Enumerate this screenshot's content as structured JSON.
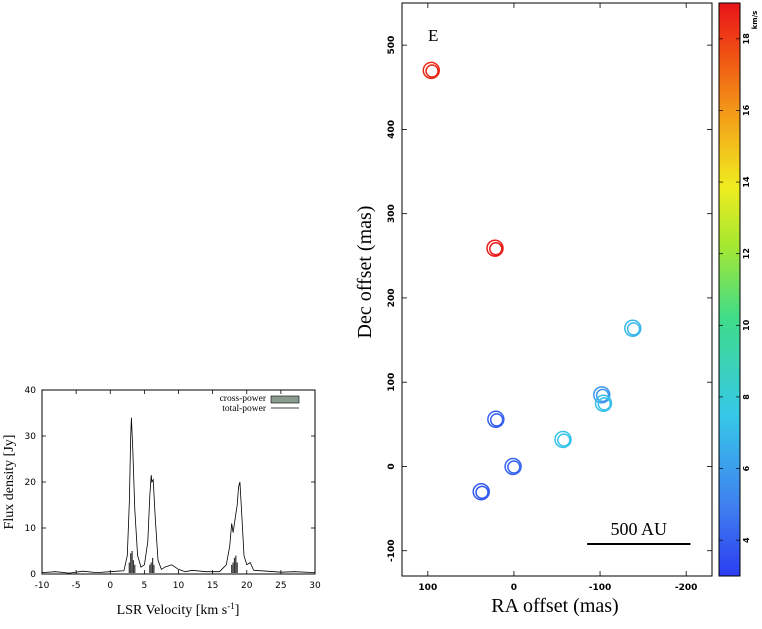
{
  "chart_data": [
    {
      "type": "line",
      "title": "",
      "xlabel": "LSR Velocity [km s",
      "xlabel_sup": "-1",
      "xlabel_end": "]",
      "ylabel": "Flux density [Jy]",
      "xlim": [
        -10,
        30
      ],
      "ylim": [
        0,
        40
      ],
      "xticks": [
        -10,
        -5,
        0,
        5,
        10,
        15,
        20,
        25,
        30
      ],
      "yticks": [
        0,
        10,
        20,
        30,
        40
      ],
      "legend": {
        "position": "top-right",
        "entries": [
          {
            "label": "cross-power",
            "kind": "bar",
            "color": "#8a9a90"
          },
          {
            "label": "total-power",
            "kind": "line",
            "color": "#000000"
          }
        ]
      },
      "series": [
        {
          "name": "total-power",
          "x": [
            -10,
            -8,
            -6,
            -4,
            -2,
            0,
            1,
            2,
            2.5,
            2.8,
            3.0,
            3.1,
            3.3,
            3.6,
            4.0,
            4.5,
            5.0,
            5.5,
            5.8,
            6.0,
            6.1,
            6.3,
            6.6,
            7.0,
            7.5,
            8.0,
            9,
            10,
            11,
            12,
            14,
            16,
            17,
            17.5,
            17.8,
            18.0,
            18.3,
            18.6,
            18.8,
            19.0,
            19.3,
            19.6,
            20.0,
            20.5,
            21,
            23,
            25,
            27,
            30
          ],
          "values": [
            0.3,
            0.5,
            0.2,
            0.6,
            0.3,
            0.5,
            0.6,
            0.7,
            4,
            16,
            30,
            34,
            27,
            14,
            4,
            1.5,
            2,
            7,
            17,
            21.5,
            20,
            20.5,
            12,
            3,
            1,
            1.5,
            2,
            1,
            0.5,
            0.8,
            0.5,
            0.5,
            2,
            6,
            11,
            9,
            12,
            15,
            19,
            20,
            12,
            4,
            2,
            2.5,
            0.8,
            0.6,
            0.4,
            0.5,
            0.3
          ]
        },
        {
          "name": "cross-power",
          "kind": "bars",
          "x": [
            2.8,
            3.0,
            3.2,
            3.4,
            3.6,
            5.8,
            6.0,
            6.2,
            6.4,
            17.8,
            18.0,
            18.2,
            18.4,
            18.6
          ],
          "values": [
            2.5,
            4.5,
            5,
            3,
            2,
            2,
            2.5,
            3.5,
            2,
            2,
            2.5,
            3.5,
            4,
            2.5
          ]
        }
      ]
    },
    {
      "type": "scatter",
      "title": "E",
      "xlabel": "RA offset (mas)",
      "ylabel": "Dec offset (mas)",
      "xlim": [
        130,
        -230
      ],
      "ylim": [
        -130,
        550
      ],
      "xticks": [
        100,
        0,
        -100,
        -200
      ],
      "yticks": [
        -100,
        0,
        100,
        200,
        300,
        400,
        500
      ],
      "scale_bar": {
        "label": "500 AU",
        "x_from": -85,
        "x_to": -205,
        "y": -92
      },
      "colorbar": {
        "label": "km/s",
        "min": 3,
        "max": 19,
        "ticks": [
          4,
          6,
          8,
          10,
          12,
          14,
          16,
          18
        ]
      },
      "points": [
        {
          "x": 96,
          "y": 470,
          "v": 18.5
        },
        {
          "x": 22,
          "y": 259,
          "v": 18.8
        },
        {
          "x": -138,
          "y": 164,
          "v": 6.9
        },
        {
          "x": -102,
          "y": 85,
          "v": 5.7
        },
        {
          "x": -104,
          "y": 75,
          "v": 7.2
        },
        {
          "x": 21,
          "y": 56,
          "v": 4.0
        },
        {
          "x": -57,
          "y": 32,
          "v": 7.3
        },
        {
          "x": 1,
          "y": 0,
          "v": 4.2
        },
        {
          "x": 38,
          "y": -30,
          "v": 3.8
        }
      ]
    }
  ]
}
